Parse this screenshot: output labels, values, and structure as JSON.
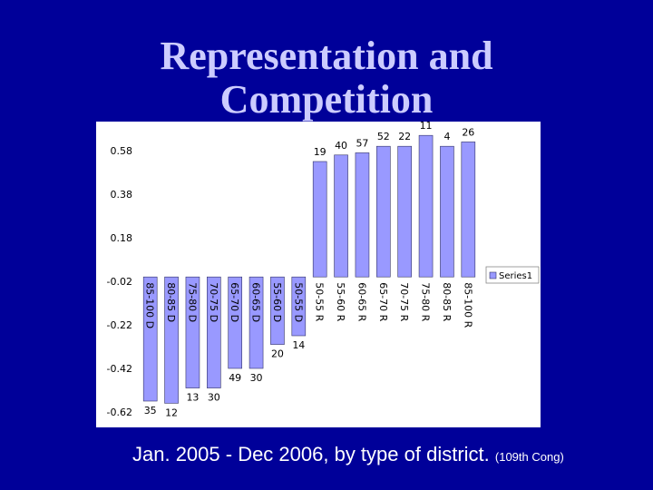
{
  "slide": {
    "title_line1": "Representation and",
    "title_line2": "Competition",
    "caption_main": "Jan. 2005 - Dec 2006, by type of district.",
    "caption_small": "(109th Cong)"
  },
  "colors": {
    "background": "#000099",
    "title": "#ccccff",
    "bar": "#9999ff",
    "bar_edge": "#333366"
  },
  "chart_data": {
    "type": "bar",
    "categories": [
      "85-100 D",
      "80-85 D",
      "75-80 D",
      "70-75 D",
      "65-70 D",
      "60-65 D",
      "55-60 D",
      "50-55 D",
      "50-55 R",
      "55-60 R",
      "60-65 R",
      "65-70 R",
      "70-75 R",
      "75-80 R",
      "80-85 R",
      "85-100 R"
    ],
    "series": [
      {
        "name": "Series1",
        "values": [
          -0.57,
          -0.58,
          -0.51,
          -0.51,
          -0.42,
          -0.42,
          -0.31,
          -0.27,
          0.53,
          0.56,
          0.57,
          0.6,
          0.6,
          0.65,
          0.6,
          0.62
        ],
        "data_labels": [
          "35",
          "12",
          "13",
          "30",
          "49",
          "30",
          "20",
          "14",
          "19",
          "40",
          "57",
          "52",
          "22",
          "11",
          "4",
          "26"
        ]
      }
    ],
    "yticks": [
      "0.58",
      "0.38",
      "0.18",
      "-0.02",
      "-0.22",
      "-0.42",
      "-0.62"
    ],
    "ylim": [
      -0.62,
      0.58
    ],
    "legend": "right",
    "grid": false
  }
}
